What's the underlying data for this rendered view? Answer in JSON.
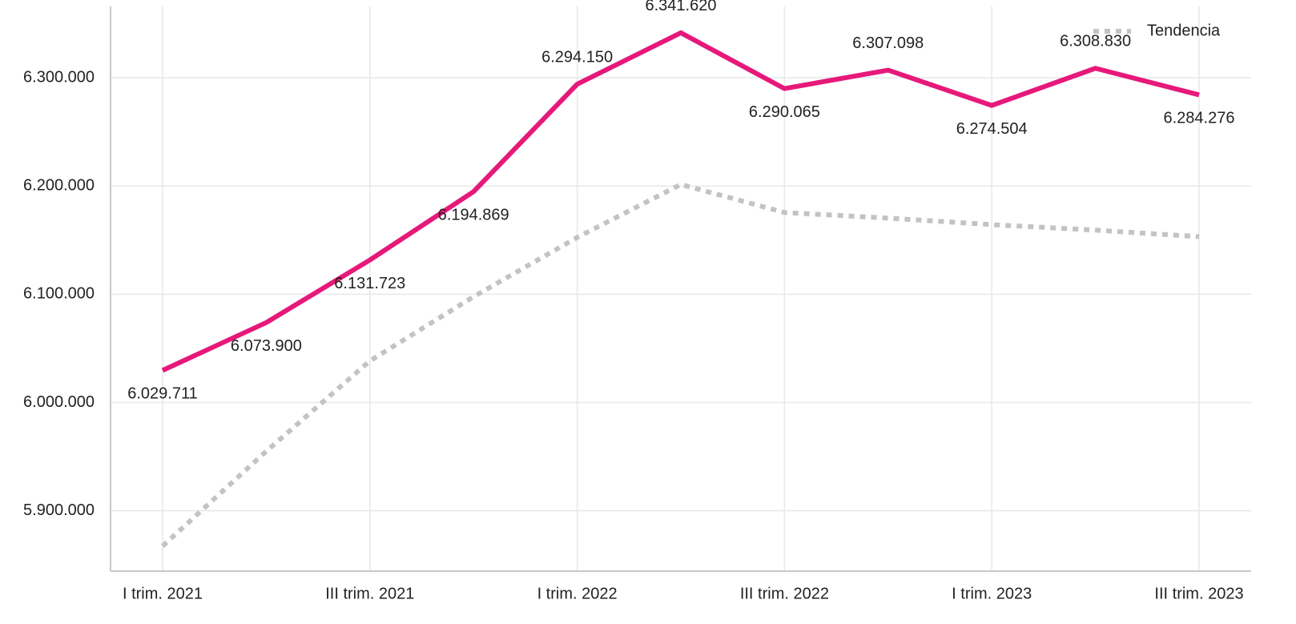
{
  "chart_data": {
    "type": "line",
    "categories": [
      "I trim. 2021",
      null,
      "III trim. 2021",
      null,
      "I trim. 2022",
      null,
      "III trim. 2022",
      null,
      "I trim. 2023",
      null,
      "III trim. 2023"
    ],
    "series": [
      {
        "color": "#e6197b",
        "values": [
          6029711,
          6073900,
          6131723,
          6194869,
          6294150,
          6341620,
          6290065,
          6307098,
          6274504,
          6308830,
          6284276
        ],
        "value_labels": [
          "6.029.711",
          "6.073.900",
          "6.131.723",
          "6.194.869",
          "6.294.150",
          "6.341.620",
          "6.290.065",
          "6.307.098",
          "6.274.504",
          "6.308.830",
          "6.284.276"
        ]
      },
      {
        "name": "Tendencia",
        "color": "#c3c3c3",
        "dash": true,
        "values": [
          5867400,
          5955000,
          6038500,
          6097800,
          6152600,
          6201500,
          6175600,
          6170400,
          6164400,
          6159300,
          6153300
        ]
      }
    ],
    "ylim": [
      5845000,
      6366000
    ],
    "yticks": [
      {
        "value": 5900000,
        "label": "5.900.000"
      },
      {
        "value": 6000000,
        "label": "6.000.000"
      },
      {
        "value": 6100000,
        "label": "6.100.000"
      },
      {
        "value": 6200000,
        "label": "6.200.000"
      },
      {
        "value": 6300000,
        "label": "6.300.000"
      }
    ],
    "grid": true,
    "legend": "top-right"
  }
}
